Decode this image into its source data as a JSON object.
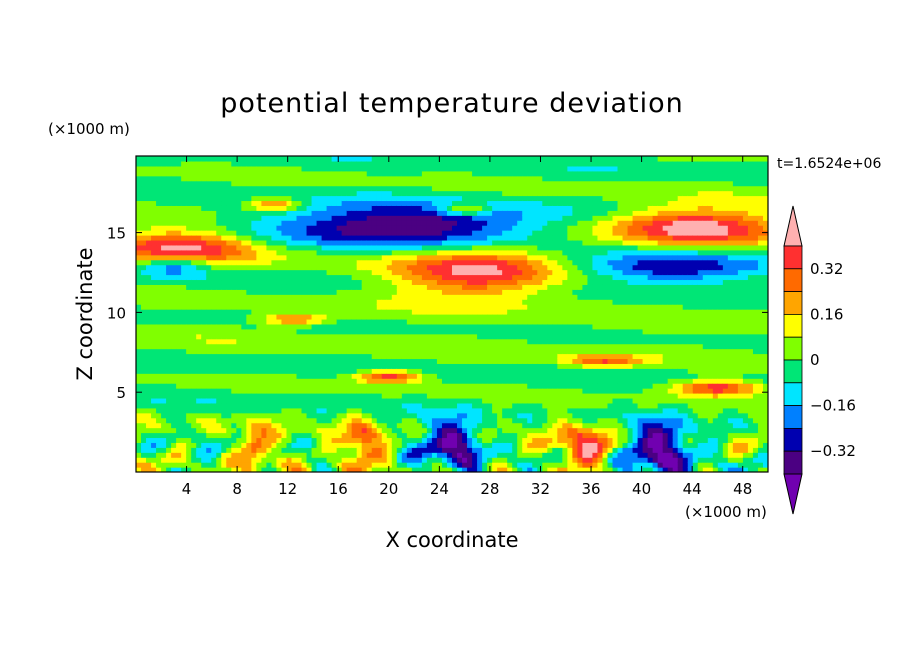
{
  "chart_data": {
    "type": "heatmap",
    "title": "potential temperature deviation",
    "xlabel": "X coordinate",
    "ylabel": "Z coordinate",
    "x_unit": "(×1000 m)",
    "y_unit": "(×1000 m)",
    "time_label": "t=1.6524e+06",
    "xlim": [
      0,
      50
    ],
    "ylim": [
      0,
      19.8
    ],
    "x_ticks": [
      4,
      8,
      12,
      16,
      20,
      24,
      28,
      32,
      36,
      40,
      44,
      48
    ],
    "y_ticks": [
      5,
      10,
      15
    ],
    "colorbar": {
      "levels": [
        -0.4,
        -0.32,
        -0.24,
        -0.16,
        -0.08,
        0,
        0.08,
        0.16,
        0.24,
        0.32,
        0.4
      ],
      "labeled_levels": [
        "0.32",
        "0.16",
        "0",
        "−0.16",
        "−0.32"
      ],
      "colors": [
        "#ffb0b0",
        "#ff3030",
        "#ff6a00",
        "#ffa500",
        "#ffff00",
        "#80ff00",
        "#00e676",
        "#00e5ff",
        "#0080ff",
        "#0000b0",
        "#4b0082",
        "#7000b0"
      ],
      "extend": "both"
    },
    "features": [
      {
        "kind": "warm",
        "x": 4,
        "z": 14.1,
        "rx": 6,
        "rz": 1.2,
        "amp": 0.45
      },
      {
        "kind": "warm",
        "x": 27,
        "z": 12.5,
        "rx": 6.5,
        "rz": 1.6,
        "amp": 0.45
      },
      {
        "kind": "warm",
        "x": 44,
        "z": 15.4,
        "rx": 6.5,
        "rz": 1.2,
        "amp": 0.45
      },
      {
        "kind": "cold",
        "x": 21,
        "z": 15.5,
        "rx": 12,
        "rz": 1.3,
        "amp": -0.45
      },
      {
        "kind": "cold",
        "x": 42,
        "z": 12.8,
        "rx": 8,
        "rz": 0.9,
        "amp": -0.3
      },
      {
        "kind": "cold",
        "x": 3,
        "z": 13.0,
        "rx": 3,
        "rz": 0.7,
        "amp": -0.3
      },
      {
        "kind": "cold",
        "x": 41,
        "z": 1.5,
        "rx": 3,
        "rz": 1.6,
        "amp": -0.45
      },
      {
        "kind": "cold",
        "x": 25,
        "z": 1.8,
        "rx": 2.5,
        "rz": 1.5,
        "amp": -0.4
      },
      {
        "kind": "warm",
        "x": 36,
        "z": 1.6,
        "rx": 2.5,
        "rz": 1.5,
        "amp": 0.35
      },
      {
        "kind": "warm",
        "x": 18,
        "z": 1.8,
        "rx": 1.5,
        "rz": 1.5,
        "amp": 0.3
      },
      {
        "kind": "warm",
        "x": 9.5,
        "z": 1.5,
        "rx": 1.2,
        "rz": 1.6,
        "amp": 0.3
      },
      {
        "kind": "warm",
        "x": 20,
        "z": 6.0,
        "rx": 2.5,
        "rz": 0.4,
        "amp": 0.4
      },
      {
        "kind": "warm",
        "x": 46,
        "z": 5.3,
        "rx": 3.5,
        "rz": 0.5,
        "amp": 0.4
      },
      {
        "kind": "warm",
        "x": 12.5,
        "z": 9.6,
        "rx": 2.5,
        "rz": 0.35,
        "amp": 0.32
      },
      {
        "kind": "warm",
        "x": 37,
        "z": 7.0,
        "rx": 3,
        "rz": 0.4,
        "amp": 0.3
      },
      {
        "kind": "warm",
        "x": 11,
        "z": 16.8,
        "rx": 2,
        "rz": 0.4,
        "amp": 0.3
      },
      {
        "kind": "warm",
        "x": 26,
        "z": 16.5,
        "rx": 2,
        "rz": 0.4,
        "amp": 0.3
      }
    ]
  }
}
